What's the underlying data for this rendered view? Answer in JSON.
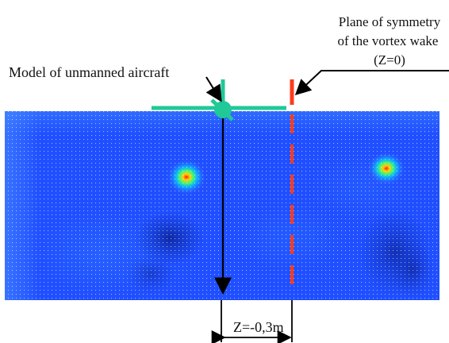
{
  "annotations": {
    "plane_title_line1": "Plane of symmetry",
    "plane_title_line2": "of the vortex wake",
    "plane_title_line3": "(Z=0)",
    "model_label": "Model of unmanned aircraft",
    "offset_label": "Z=-0,3m"
  },
  "colors": {
    "field_base": "#1f4fff",
    "field_deep": "#0c28a8",
    "field_light": "#3a8cff",
    "grid_dots": "#ffffff",
    "model": "#20c997",
    "plane_line": "#ff3b1f",
    "arrow": "#000000"
  }
}
